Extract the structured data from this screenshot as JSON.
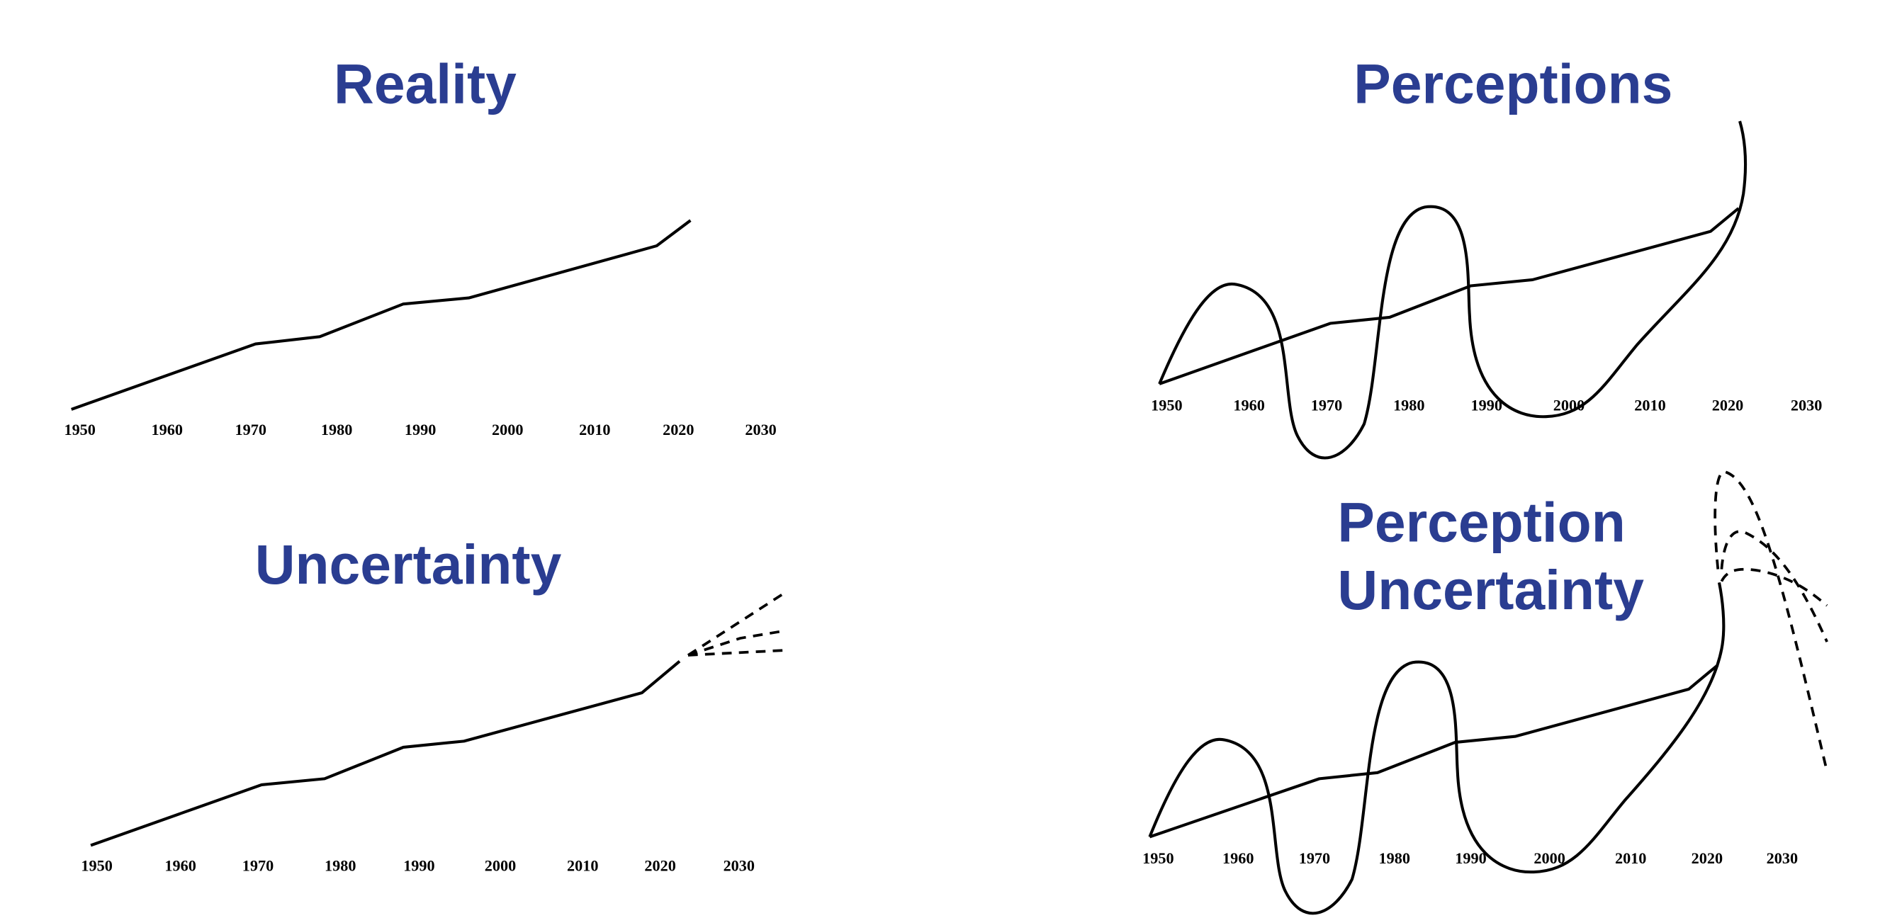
{
  "panels": [
    {
      "title": [
        "Reality"
      ],
      "x_labels": [
        "1950",
        "1960",
        "1970",
        "1980",
        "1990",
        "2000",
        "2010",
        "2020",
        "2030"
      ]
    },
    {
      "title": [
        "Perceptions"
      ],
      "x_labels": [
        "1950",
        "1960",
        "1970",
        "1980",
        "1990",
        "2000",
        "2010",
        "2020",
        "2030"
      ]
    },
    {
      "title": [
        "Uncertainty"
      ],
      "x_labels": [
        "1950",
        "1960",
        "1970",
        "1980",
        "1990",
        "2000",
        "2010",
        "2020",
        "2030"
      ]
    },
    {
      "title": [
        "Perception",
        "Uncertainty"
      ],
      "x_labels": [
        "1950",
        "1960",
        "1970",
        "1980",
        "1990",
        "2000",
        "2010",
        "2020",
        "2030"
      ]
    }
  ]
}
